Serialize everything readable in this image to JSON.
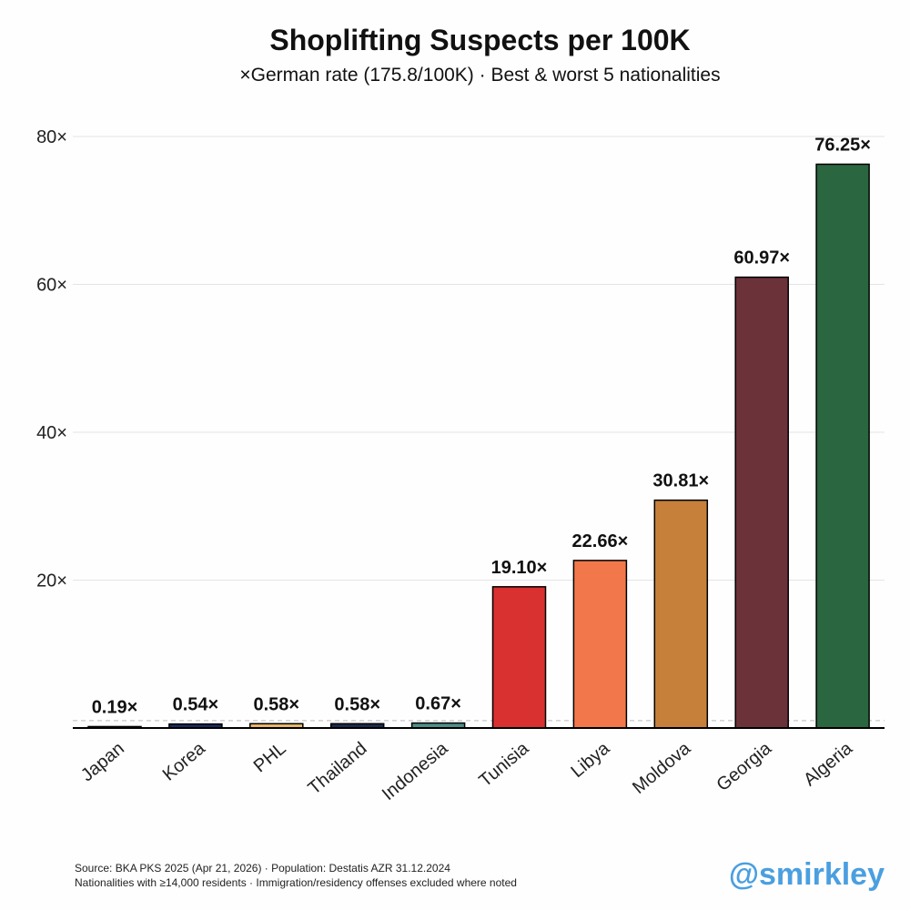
{
  "chart_data": {
    "type": "bar",
    "title": "Shoplifting Suspects per 100K",
    "subtitle": "×German rate (175.8/100K) · Best & worst 5 nationalities",
    "categories": [
      "Japan",
      "Korea",
      "PHL",
      "Thailand",
      "Indonesia",
      "Tunisia",
      "Libya",
      "Moldova",
      "Georgia",
      "Algeria"
    ],
    "values": [
      0.19,
      0.54,
      0.58,
      0.58,
      0.67,
      19.1,
      22.66,
      30.81,
      60.97,
      76.25
    ],
    "value_labels": [
      "0.19×",
      "0.54×",
      "0.58×",
      "0.58×",
      "0.67×",
      "19.10×",
      "22.66×",
      "30.81×",
      "60.97×",
      "76.25×"
    ],
    "colors": [
      "#111111",
      "#1a2a5a",
      "#e8b86a",
      "#1c2a4a",
      "#4e8f87",
      "#d93030",
      "#f2784b",
      "#c6803a",
      "#6b323a",
      "#2a6640"
    ],
    "ylim": [
      0,
      80
    ],
    "yticks": [
      20,
      40,
      60,
      80
    ],
    "ytick_labels": [
      "20×",
      "40×",
      "60×",
      "80×"
    ],
    "reference_line": 1,
    "grid": true,
    "xlabel": "",
    "ylabel": ""
  },
  "footer": {
    "source": "Source: BKA PKS 2025 (Apr 21, 2026) · Population: Destatis AZR 31.12.2024",
    "note": "Nationalities with ≥14,000 residents · Immigration/residency offenses excluded where noted"
  },
  "watermark": "@smirkley"
}
